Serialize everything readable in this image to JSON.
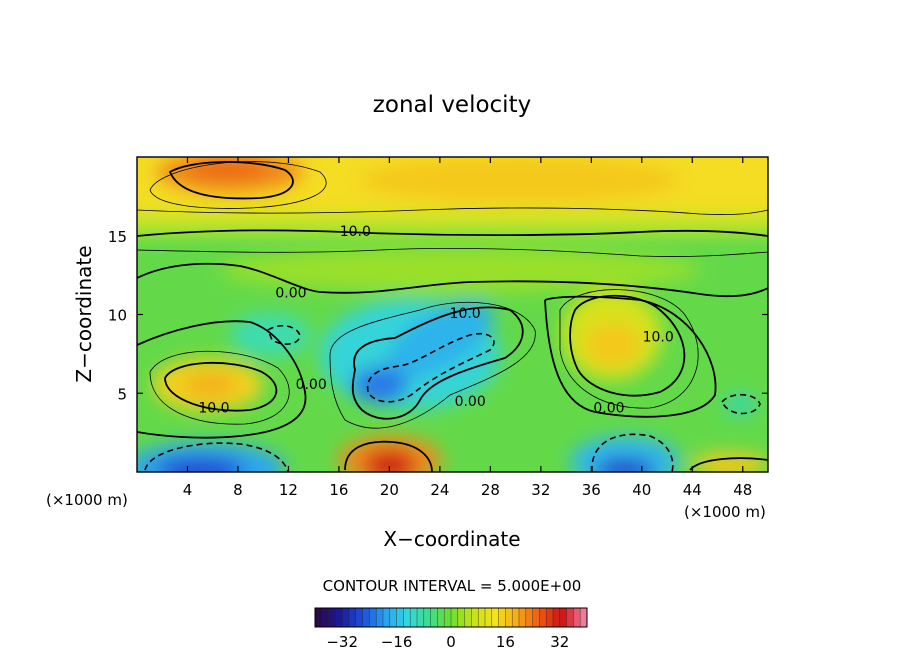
{
  "chart_data": {
    "type": "heatmap",
    "title": "zonal velocity",
    "xlabel": "X−coordinate",
    "ylabel": "Z−coordinate",
    "x_unit_left": "(×1000 m)",
    "x_unit_right": "(×1000 m)",
    "xlim": [
      0,
      50
    ],
    "ylim": [
      0,
      20
    ],
    "x_ticks": [
      4,
      8,
      12,
      16,
      20,
      24,
      28,
      32,
      36,
      40,
      44,
      48
    ],
    "x_tick_labels": [
      "4",
      "8",
      "12",
      "16",
      "20",
      "24",
      "28",
      "32",
      "36",
      "40",
      "44",
      "48"
    ],
    "y_ticks": [
      5,
      10,
      15
    ],
    "y_tick_labels": [
      "5",
      "10",
      "15"
    ],
    "contour_interval_text": "CONTOUR INTERVAL = 5.000E+00",
    "contour_labels": [
      {
        "text": "10.0",
        "x": 17.3,
        "y": 15.3
      },
      {
        "text": "0.00",
        "x": 12.2,
        "y": 11.4
      },
      {
        "text": "10.0",
        "x": 26.0,
        "y": 10.1
      },
      {
        "text": "10.0",
        "x": 41.3,
        "y": 8.6
      },
      {
        "text": "0.00",
        "x": 13.8,
        "y": 5.6
      },
      {
        "text": "10.0",
        "x": 6.1,
        "y": 4.1
      },
      {
        "text": "0.00",
        "x": 26.4,
        "y": 4.5
      },
      {
        "text": "0.00",
        "x": 37.4,
        "y": 4.1
      }
    ],
    "colorbar": {
      "range": [
        -40,
        40
      ],
      "ticks": [
        -32,
        -16,
        0,
        16,
        32
      ],
      "tick_labels": [
        "−32",
        "−16",
        "0",
        "16",
        "32"
      ],
      "colors": [
        "#2a0a4a",
        "#1a1a9a",
        "#1d4fd8",
        "#2aa0f0",
        "#33d6e0",
        "#3ddc8c",
        "#6fdc2f",
        "#c8e21a",
        "#f4e21a",
        "#f6a91a",
        "#ee5a14",
        "#cc1212",
        "#f07a9a"
      ]
    },
    "features": [
      {
        "kind": "jet",
        "sign": "+",
        "x": 9,
        "y": 18.6,
        "value": 26
      },
      {
        "kind": "jet",
        "sign": "+",
        "x": 6,
        "y": 5.3,
        "value": 18
      },
      {
        "kind": "jet",
        "sign": "+",
        "x": 40,
        "y": 8.0,
        "value": 18
      },
      {
        "kind": "jet",
        "sign": "+",
        "x": 20,
        "y": 0.6,
        "value": 38
      },
      {
        "kind": "jet",
        "sign": "+",
        "x": 46,
        "y": 0.6,
        "value": 14
      },
      {
        "kind": "jet",
        "sign": "-",
        "x": 19,
        "y": 5.0,
        "value": -20
      },
      {
        "kind": "jet",
        "sign": "-",
        "x": 24,
        "y": 8.0,
        "value": -14
      },
      {
        "kind": "jet",
        "sign": "-",
        "x": 6,
        "y": 0.6,
        "value": -28
      },
      {
        "kind": "jet",
        "sign": "-",
        "x": 39,
        "y": 0.8,
        "value": -26
      }
    ]
  }
}
